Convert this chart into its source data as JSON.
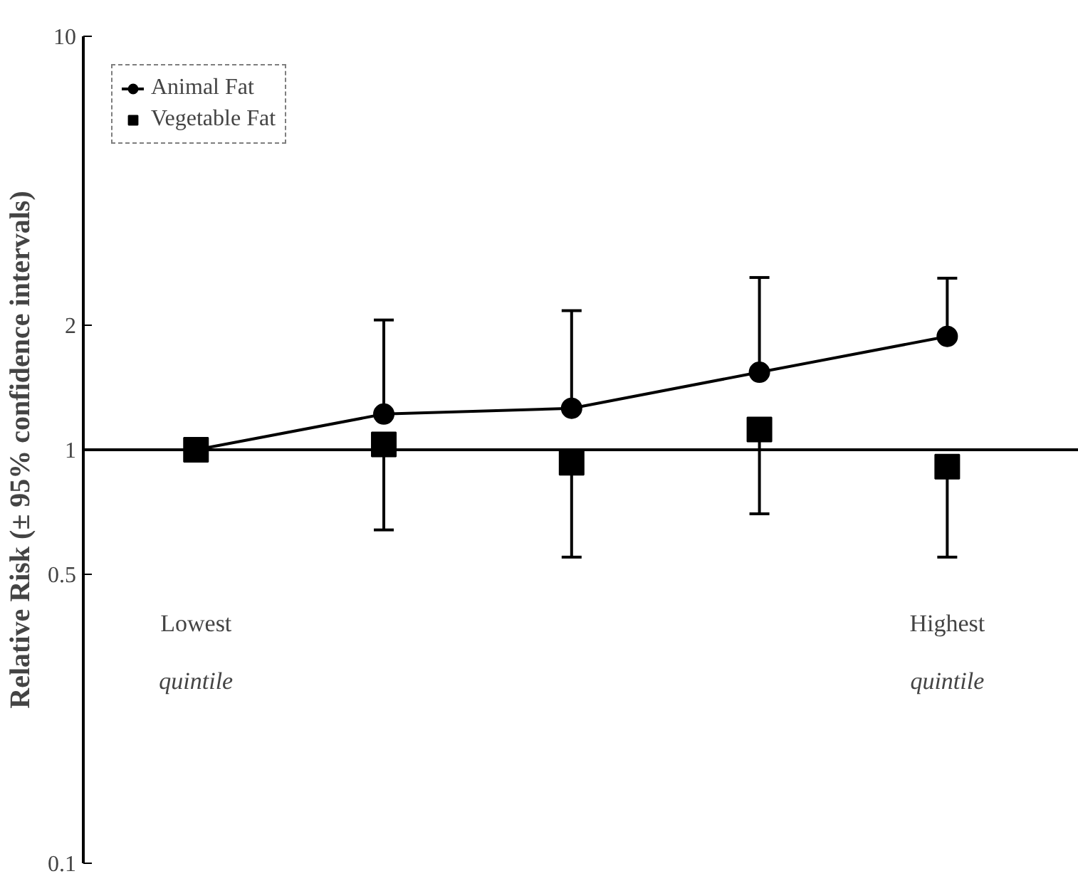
{
  "chart_data": {
    "type": "line",
    "ylabel": "Relative Risk (± 95% confidence intervals)",
    "categories": [
      null,
      null,
      null,
      null,
      null
    ],
    "series": [
      {
        "name": "Animal Fat",
        "color": "#000000",
        "marker": "circle",
        "values": [
          1.0,
          1.22,
          1.26,
          1.54,
          1.88
        ],
        "errors": [
          null,
          [
            1.22,
            2.06
          ],
          [
            1.26,
            2.17
          ],
          [
            1.54,
            2.61
          ],
          [
            1.88,
            2.6
          ]
        ]
      },
      {
        "name": "Vegetable Fat",
        "color": "#000000",
        "type": "scatter",
        "marker": "square",
        "values": [
          1.0,
          1.03,
          0.93,
          1.12,
          0.91
        ],
        "errors": [
          null,
          [
            0.64,
            1.03
          ],
          [
            0.55,
            0.93
          ],
          [
            0.7,
            1.12
          ],
          [
            0.55,
            0.91
          ]
        ]
      }
    ],
    "log": "y",
    "ylim": [
      0.1,
      10
    ],
    "yticks": [
      0.1,
      0.5,
      1,
      2,
      10
    ],
    "ref_lines": [
      {
        "axis": "y",
        "value": 1,
        "color": "#000000"
      }
    ],
    "annotations": [
      "Lowest\nquintile",
      "Highest\nquintile"
    ],
    "legend": "top left",
    "grid": false,
    "line_style": "solid"
  }
}
